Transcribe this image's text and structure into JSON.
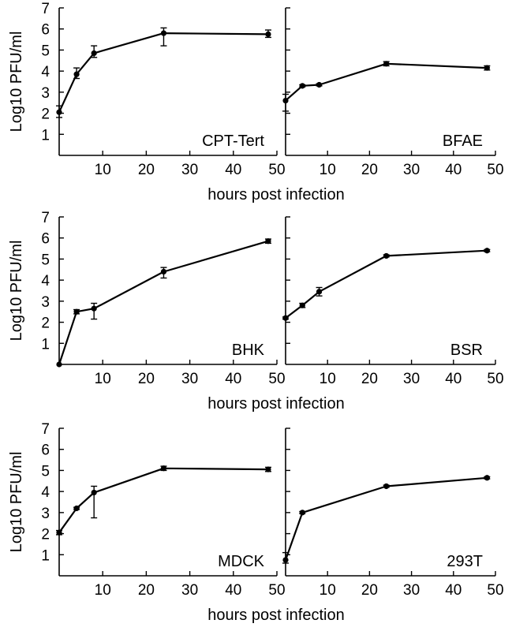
{
  "y_label": "Log10 PFU/ml",
  "x_label": "hours post infection",
  "chart_data": [
    {
      "type": "line",
      "panel_label": "CPT-Tert",
      "x": [
        0,
        4,
        8,
        24,
        48
      ],
      "y": [
        2.05,
        3.85,
        4.85,
        5.8,
        5.75
      ],
      "err_low": [
        0.25,
        0.2,
        0.2,
        0.6,
        0.15
      ],
      "err_high": [
        0.3,
        0.3,
        0.35,
        0.25,
        0.2
      ],
      "xlim": [
        0,
        50
      ],
      "ylim": [
        0,
        7
      ],
      "xticks": [
        10,
        20,
        30,
        40,
        50
      ],
      "yticks": [
        1,
        2,
        3,
        4,
        5,
        6,
        7
      ]
    },
    {
      "type": "line",
      "panel_label": "BFAE",
      "x": [
        0,
        4,
        8,
        24,
        48
      ],
      "y": [
        2.6,
        3.3,
        3.35,
        4.35,
        4.15
      ],
      "err_low": [
        0.5,
        0.05,
        0.05,
        0.1,
        0.1
      ],
      "err_high": [
        0.3,
        0.05,
        0.05,
        0.1,
        0.1
      ],
      "xlim": [
        0,
        50
      ],
      "ylim": [
        0,
        7
      ],
      "xticks": [
        10,
        20,
        30,
        40,
        50
      ],
      "yticks": [
        1,
        2,
        3,
        4,
        5,
        6,
        7
      ]
    },
    {
      "type": "line",
      "panel_label": "BHK",
      "x": [
        0,
        4,
        8,
        24,
        48
      ],
      "y": [
        0,
        2.5,
        2.65,
        4.4,
        5.85
      ],
      "err_low": [
        0,
        0.1,
        0.5,
        0.3,
        0.1
      ],
      "err_high": [
        0,
        0.1,
        0.25,
        0.2,
        0.1
      ],
      "xlim": [
        0,
        50
      ],
      "ylim": [
        0,
        7
      ],
      "xticks": [
        10,
        20,
        30,
        40,
        50
      ],
      "yticks": [
        1,
        2,
        3,
        4,
        5,
        6,
        7
      ]
    },
    {
      "type": "line",
      "panel_label": "BSR",
      "x": [
        0,
        4,
        8,
        24,
        48
      ],
      "y": [
        2.2,
        2.8,
        3.45,
        5.15,
        5.4
      ],
      "err_low": [
        0.05,
        0.1,
        0.2,
        0.05,
        0.05
      ],
      "err_high": [
        0.05,
        0.1,
        0.2,
        0.05,
        0.05
      ],
      "xlim": [
        0,
        50
      ],
      "ylim": [
        0,
        7
      ],
      "xticks": [
        10,
        20,
        30,
        40,
        50
      ],
      "yticks": [
        1,
        2,
        3,
        4,
        5,
        6,
        7
      ]
    },
    {
      "type": "line",
      "panel_label": "MDCK",
      "x": [
        0,
        4,
        8,
        24,
        48
      ],
      "y": [
        2.05,
        3.2,
        3.95,
        5.1,
        5.05
      ],
      "err_low": [
        0.1,
        0.05,
        1.2,
        0.1,
        0.1
      ],
      "err_high": [
        0.1,
        0.05,
        0.3,
        0.1,
        0.1
      ],
      "xlim": [
        0,
        50
      ],
      "ylim": [
        0,
        7
      ],
      "xticks": [
        10,
        20,
        30,
        40,
        50
      ],
      "yticks": [
        1,
        2,
        3,
        4,
        5,
        6,
        7
      ]
    },
    {
      "type": "line",
      "panel_label": "293T",
      "x": [
        0,
        4,
        24,
        48
      ],
      "y": [
        0.75,
        3.0,
        4.25,
        4.65
      ],
      "err_low": [
        0.15,
        0.05,
        0.05,
        0.05
      ],
      "err_high": [
        0.35,
        0.05,
        0.05,
        0.05
      ],
      "xlim": [
        0,
        50
      ],
      "ylim": [
        0,
        7
      ],
      "xticks": [
        10,
        20,
        30,
        40,
        50
      ],
      "yticks": [
        1,
        2,
        3,
        4,
        5,
        6,
        7
      ]
    }
  ]
}
